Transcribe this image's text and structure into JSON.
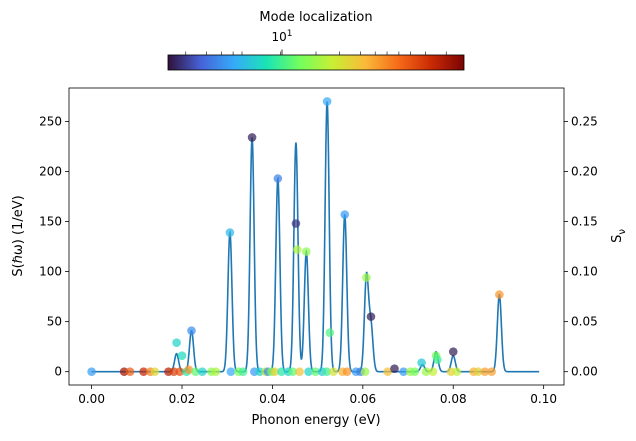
{
  "chart_data": {
    "type": "line",
    "xlabel": "Phonon energy (eV)",
    "ylabel_left": "S(ℏω)  (1/eV)",
    "ylabel_right": "S_ν",
    "xlim": [
      -0.005,
      0.1045
    ],
    "ylim_left": [
      -13.3,
      283.4
    ],
    "ylim_right": [
      -0.0133,
      0.2834
    ],
    "xticks": [
      0.0,
      0.02,
      0.04,
      0.06,
      0.08,
      0.1
    ],
    "xtick_labels": [
      "0.00",
      "0.02",
      "0.04",
      "0.06",
      "0.08",
      "0.10"
    ],
    "yticks_left": [
      0,
      50,
      100,
      150,
      200,
      250
    ],
    "ytick_labels_left": [
      "0",
      "50",
      "100",
      "150",
      "200",
      "250"
    ],
    "yticks_right": [
      0.0,
      0.05,
      0.1,
      0.15,
      0.2,
      0.25
    ],
    "ytick_labels_right": [
      "0.00",
      "0.05",
      "0.10",
      "0.15",
      "0.20",
      "0.25"
    ],
    "colorbar": {
      "label": "Mode localization",
      "scale": "log",
      "tick_label": "10",
      "tick_exponent": "1",
      "colormap": "turbo",
      "colors": [
        "#30123b",
        "#4662d7",
        "#36aaf9",
        "#1ae4b6",
        "#72fe5e",
        "#c8ef34",
        "#faba39",
        "#f66b19",
        "#ca2a04",
        "#7a0403"
      ]
    },
    "line_color": "#1f77b4",
    "peaks": [
      {
        "x": 0.0,
        "height": 0.0
      },
      {
        "x": 0.0188,
        "height": 18.0
      },
      {
        "x": 0.0221,
        "height": 41.0
      },
      {
        "x": 0.0306,
        "height": 139.0
      },
      {
        "x": 0.0355,
        "height": 234.0
      },
      {
        "x": 0.0412,
        "height": 193.0
      },
      {
        "x": 0.0452,
        "height": 229.0
      },
      {
        "x": 0.0475,
        "height": 120.0
      },
      {
        "x": 0.0521,
        "height": 270.0
      },
      {
        "x": 0.056,
        "height": 157.0
      },
      {
        "x": 0.0608,
        "height": 95.0
      },
      {
        "x": 0.0618,
        "height": 45.0
      },
      {
        "x": 0.0732,
        "height": 7.0
      },
      {
        "x": 0.0762,
        "height": 20.0
      },
      {
        "x": 0.08,
        "height": 16.0
      },
      {
        "x": 0.0902,
        "height": 77.0
      }
    ],
    "points": [
      {
        "x": 0.0,
        "y": 0.0,
        "c": 0.2
      },
      {
        "x": 0.0072,
        "y": 0.0,
        "c": 0.95
      },
      {
        "x": 0.0085,
        "y": 0.0,
        "c": 0.8
      },
      {
        "x": 0.0115,
        "y": 0.0,
        "c": 0.9
      },
      {
        "x": 0.013,
        "y": 0.0,
        "c": 0.75
      },
      {
        "x": 0.014,
        "y": 0.0,
        "c": 0.6
      },
      {
        "x": 0.017,
        "y": 0.0,
        "c": 0.92
      },
      {
        "x": 0.0182,
        "y": 0.0,
        "c": 0.85
      },
      {
        "x": 0.0188,
        "y": 0.029,
        "c": 0.3
      },
      {
        "x": 0.0195,
        "y": 0.0,
        "c": 0.82
      },
      {
        "x": 0.02,
        "y": 0.016,
        "c": 0.32
      },
      {
        "x": 0.021,
        "y": 0.0,
        "c": 0.35
      },
      {
        "x": 0.0215,
        "y": 0.002,
        "c": 0.72
      },
      {
        "x": 0.0221,
        "y": 0.041,
        "c": 0.18
      },
      {
        "x": 0.023,
        "y": 0.0,
        "c": 0.42
      },
      {
        "x": 0.0245,
        "y": 0.0,
        "c": 0.3
      },
      {
        "x": 0.0265,
        "y": 0.0,
        "c": 0.48
      },
      {
        "x": 0.0275,
        "y": 0.0,
        "c": 0.52
      },
      {
        "x": 0.0306,
        "y": 0.139,
        "c": 0.25
      },
      {
        "x": 0.0308,
        "y": 0.0,
        "c": 0.22
      },
      {
        "x": 0.0325,
        "y": 0.0,
        "c": 0.45
      },
      {
        "x": 0.0335,
        "y": 0.0,
        "c": 0.38
      },
      {
        "x": 0.0355,
        "y": 0.234,
        "c": 0.02
      },
      {
        "x": 0.036,
        "y": 0.0,
        "c": 0.2
      },
      {
        "x": 0.0372,
        "y": 0.0,
        "c": 0.3
      },
      {
        "x": 0.0385,
        "y": 0.0,
        "c": 0.58
      },
      {
        "x": 0.039,
        "y": 0.0,
        "c": 0.18
      },
      {
        "x": 0.0398,
        "y": 0.0,
        "c": 0.45
      },
      {
        "x": 0.0405,
        "y": 0.0,
        "c": 0.62
      },
      {
        "x": 0.0412,
        "y": 0.193,
        "c": 0.16
      },
      {
        "x": 0.042,
        "y": 0.0,
        "c": 0.35
      },
      {
        "x": 0.0435,
        "y": 0.0,
        "c": 0.3
      },
      {
        "x": 0.0445,
        "y": 0.0,
        "c": 0.42
      },
      {
        "x": 0.0452,
        "y": 0.148,
        "c": 0.05
      },
      {
        "x": 0.0455,
        "y": 0.122,
        "c": 0.52
      },
      {
        "x": 0.046,
        "y": 0.0,
        "c": 0.65
      },
      {
        "x": 0.0475,
        "y": 0.12,
        "c": 0.48
      },
      {
        "x": 0.048,
        "y": 0.0,
        "c": 0.3
      },
      {
        "x": 0.0495,
        "y": 0.0,
        "c": 0.42
      },
      {
        "x": 0.051,
        "y": 0.0,
        "c": 0.28
      },
      {
        "x": 0.052,
        "y": 0.0,
        "c": 0.38
      },
      {
        "x": 0.0521,
        "y": 0.27,
        "c": 0.22
      },
      {
        "x": 0.0527,
        "y": 0.039,
        "c": 0.4
      },
      {
        "x": 0.0535,
        "y": 0.0,
        "c": 0.58
      },
      {
        "x": 0.0555,
        "y": 0.0,
        "c": 0.68
      },
      {
        "x": 0.056,
        "y": 0.157,
        "c": 0.2
      },
      {
        "x": 0.0565,
        "y": 0.0,
        "c": 0.72
      },
      {
        "x": 0.0585,
        "y": 0.0,
        "c": 0.2
      },
      {
        "x": 0.0595,
        "y": 0.0,
        "c": 0.15
      },
      {
        "x": 0.0605,
        "y": 0.0,
        "c": 0.5
      },
      {
        "x": 0.0608,
        "y": 0.094,
        "c": 0.5
      },
      {
        "x": 0.0618,
        "y": 0.055,
        "c": 0.02
      },
      {
        "x": 0.0655,
        "y": 0.0,
        "c": 0.65
      },
      {
        "x": 0.067,
        "y": 0.003,
        "c": 0.02
      },
      {
        "x": 0.069,
        "y": 0.0,
        "c": 0.2
      },
      {
        "x": 0.0705,
        "y": 0.0,
        "c": 0.5
      },
      {
        "x": 0.0715,
        "y": 0.0,
        "c": 0.45
      },
      {
        "x": 0.073,
        "y": 0.009,
        "c": 0.28
      },
      {
        "x": 0.074,
        "y": 0.0,
        "c": 0.5
      },
      {
        "x": 0.0755,
        "y": 0.0,
        "c": 0.55
      },
      {
        "x": 0.0762,
        "y": 0.016,
        "c": 0.45
      },
      {
        "x": 0.0765,
        "y": 0.012,
        "c": 0.38
      },
      {
        "x": 0.0795,
        "y": 0.0,
        "c": 0.62
      },
      {
        "x": 0.08,
        "y": 0.02,
        "c": 0.02
      },
      {
        "x": 0.0808,
        "y": 0.0,
        "c": 0.55
      },
      {
        "x": 0.0845,
        "y": 0.0,
        "c": 0.68
      },
      {
        "x": 0.0855,
        "y": 0.0,
        "c": 0.62
      },
      {
        "x": 0.087,
        "y": 0.0,
        "c": 0.7
      },
      {
        "x": 0.0885,
        "y": 0.0,
        "c": 0.7
      },
      {
        "x": 0.0902,
        "y": 0.077,
        "c": 0.72
      }
    ]
  }
}
